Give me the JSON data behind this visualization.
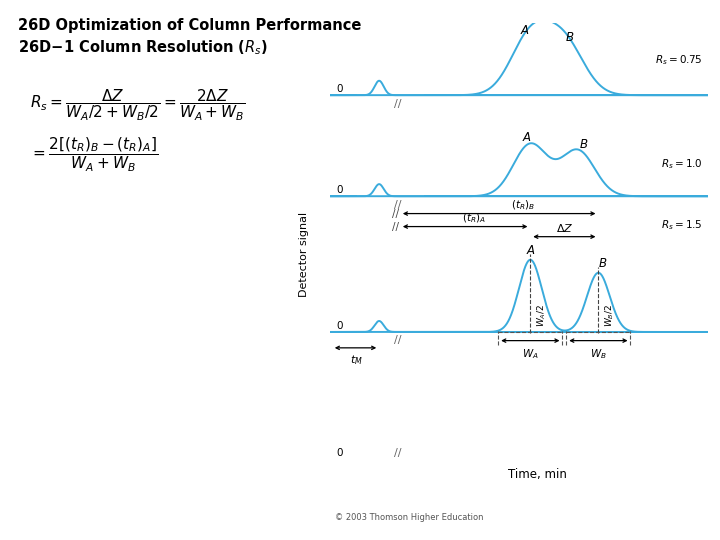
{
  "title1": "26D Optimization of Column Performance",
  "title2": "26D-1 Column Resolution (R_s)",
  "bg_color": "#ffffff",
  "line_color": "#3aabdc",
  "copyright": "© 2003 Thomson Higher Education",
  "xlabel": "Time, min",
  "ylabel": "Detector signal"
}
